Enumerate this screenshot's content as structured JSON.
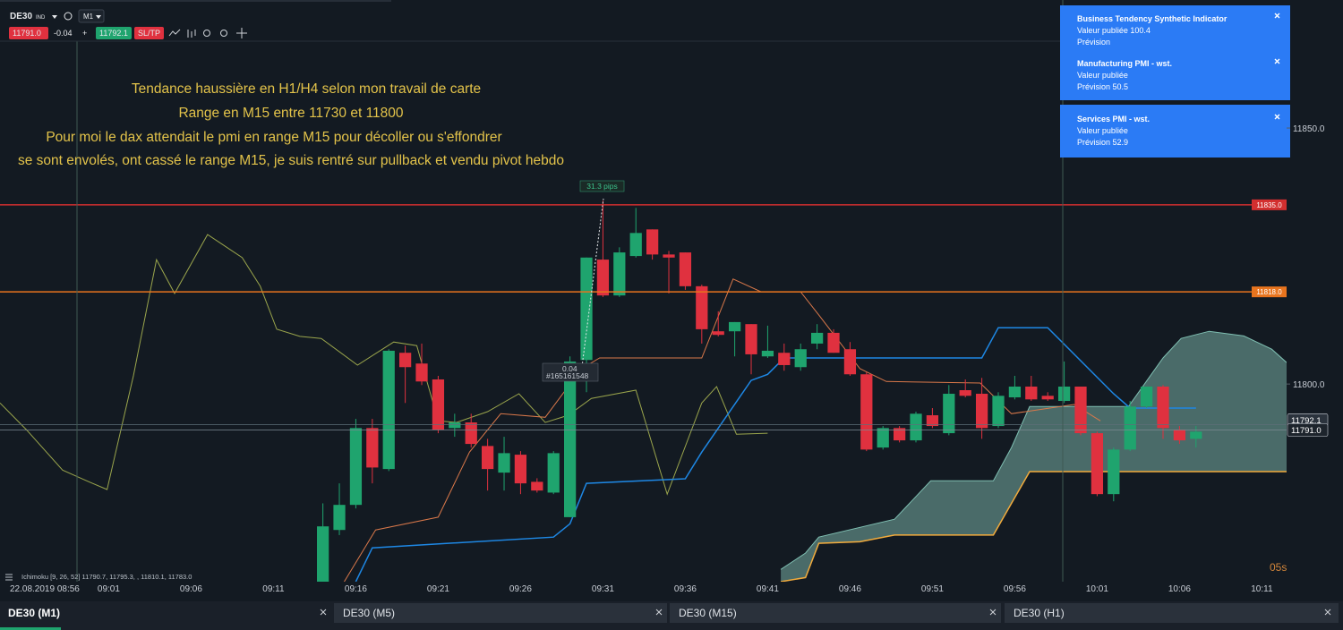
{
  "toolbar": {
    "symbol": "DE30",
    "badge": "IND",
    "timeframe": "M1",
    "bid": "11791.0",
    "spread": "-0.04",
    "plus": "+",
    "ask": "11792.1",
    "sltp": "SL/TP"
  },
  "notifications": [
    {
      "title": "Business Tendency Synthetic Indicator",
      "published": "Valeur publiée",
      "published_value": "100.4",
      "forecast": "Prévision"
    },
    {
      "title": "Manufacturing PMI - wst.",
      "published": "Valeur publiée",
      "forecast": "Prévision",
      "forecast_value": "50.5"
    },
    {
      "title": "Services PMI - wst.",
      "published": "Valeur publiée",
      "forecast": "Prévision",
      "forecast_value": "52.9"
    }
  ],
  "chart_data": {
    "type": "candlestick",
    "annotations": [
      "Tendance haussière en H1/H4 selon mon travail de carte",
      "Range en M15 entre 11730 et 11800",
      "Pour moi le dax attendait le pmi en range M15 pour décoller ou s'effondrer",
      "se sont envolés, ont cassé le range M15, je suis rentré sur pullback et vendu pivot hebdo"
    ],
    "x_start_label": "22.08.2019 08:56",
    "timer": "05s",
    "legend": "Ichimoku [9, 26, 52] 11790.7, 11795.3, , 11810.1, 11783.0",
    "measure": {
      "label": "31.3 pips",
      "change": "0.04",
      "order": "#165161548"
    },
    "up_color": "#1fa46e",
    "down_color": "#e0313f",
    "x": [
      14,
      15,
      16,
      17,
      18,
      19,
      20,
      21,
      22,
      23,
      24,
      25,
      26,
      27,
      28,
      29,
      30,
      31,
      32,
      33,
      34,
      35,
      36,
      37,
      38,
      39,
      40,
      41,
      42,
      43,
      44,
      45,
      46,
      47,
      48,
      49,
      50,
      51,
      52,
      53,
      54,
      55,
      56,
      57,
      58,
      59,
      60,
      61,
      62,
      63,
      64,
      65,
      66,
      67
    ],
    "open": [
      11761.4,
      11771.5,
      11776.4,
      11791.4,
      11783.4,
      11806.1,
      11804.0,
      11800.9,
      11791.4,
      11792.5,
      11787.9,
      11782.7,
      11786.2,
      11780.9,
      11778.8,
      11774.0,
      11804.7,
      11824.3,
      11817.3,
      11825.0,
      11830.2,
      11825.3,
      11825.7,
      11819.1,
      11810.3,
      11810.3,
      11811.7,
      11805.4,
      11806.1,
      11803.3,
      11807.9,
      11810.0,
      11806.8,
      11801.9,
      11787.6,
      11791.4,
      11789.0,
      11793.9,
      11790.4,
      11798.8,
      11798.1,
      11791.8,
      11797.4,
      11799.5,
      11797.7,
      11796.7,
      11799.5,
      11790.4,
      11778.5,
      11787.2,
      11795.6,
      11799.5,
      11791.1,
      11789.3
    ],
    "high": [
      11776.7,
      11780.6,
      11793.2,
      11793.2,
      11806.8,
      11807.5,
      11807.9,
      11801.6,
      11794.2,
      11794.2,
      11789.3,
      11789.7,
      11786.9,
      11781.6,
      11786.9,
      11805.4,
      11824.7,
      11835.8,
      11826.7,
      11834.4,
      11830.2,
      11826.0,
      11825.7,
      11819.4,
      11814.2,
      11812.1,
      11811.7,
      11811.4,
      11807.9,
      11807.9,
      11811.7,
      11810.7,
      11808.2,
      11802.3,
      11791.8,
      11791.8,
      11794.6,
      11795.3,
      11799.8,
      11800.9,
      11801.2,
      11798.4,
      11801.6,
      11801.6,
      11798.4,
      11804.4,
      11799.5,
      11790.7,
      11787.6,
      11796.7,
      11799.5,
      11799.8,
      11791.8,
      11791.8
    ],
    "low": [
      11761.4,
      11770.5,
      11775.7,
      11780.6,
      11783.0,
      11796.3,
      11799.8,
      11790.4,
      11789.7,
      11787.6,
      11779.2,
      11779.2,
      11778.5,
      11778.8,
      11778.5,
      11774.0,
      11798.4,
      11817.0,
      11817.0,
      11824.7,
      11824.3,
      11817.7,
      11818.4,
      11807.9,
      11809.3,
      11805.4,
      11801.9,
      11805.1,
      11802.6,
      11802.6,
      11806.8,
      11806.1,
      11801.6,
      11786.9,
      11787.2,
      11788.6,
      11788.6,
      11791.4,
      11790.0,
      11797.4,
      11789.3,
      11791.4,
      11797.0,
      11796.7,
      11796.7,
      11796.3,
      11790.0,
      11778.1,
      11777.1,
      11786.9,
      11795.3,
      11789.3,
      11788.3,
      11787.6
    ],
    "close": [
      11772.2,
      11776.4,
      11791.4,
      11783.7,
      11806.5,
      11803.3,
      11800.5,
      11791.1,
      11792.5,
      11788.3,
      11783.4,
      11786.5,
      11780.6,
      11779.2,
      11786.5,
      11804.4,
      11824.7,
      11817.3,
      11825.7,
      11829.5,
      11825.3,
      11824.7,
      11819.1,
      11810.7,
      11809.6,
      11812.1,
      11805.8,
      11806.5,
      11803.7,
      11806.8,
      11810.0,
      11806.1,
      11801.9,
      11787.2,
      11791.4,
      11789.0,
      11794.2,
      11791.8,
      11798.1,
      11797.7,
      11791.4,
      11797.7,
      11799.5,
      11797.0,
      11797.0,
      11799.5,
      11790.4,
      11778.5,
      11787.2,
      11795.6,
      11799.5,
      11791.4,
      11789.0,
      11790.7
    ],
    "indicators": {
      "chikou": {
        "color": "#9aa54c",
        "x": [
          -5.6,
          -4.0,
          -1.8,
          -0.2,
          0.9,
          2.5,
          3.9,
          5.0,
          7.0,
          9.1,
          10.2,
          11.2,
          12.6,
          13.9,
          16.1,
          18.3,
          19.7,
          21.0,
          22.1,
          24.0,
          25.9,
          27.5,
          28.9,
          30.3,
          33.0,
          34.9,
          37.0,
          37.9,
          39.1,
          41.0
        ],
        "values": [
          11796.3,
          11791.1,
          11783.2,
          11780.9,
          11779.4,
          11801.6,
          11824.3,
          11817.7,
          11829.2,
          11824.7,
          11819.1,
          11810.7,
          11809.3,
          11808.9,
          11803.7,
          11808.2,
          11807.5,
          11792.8,
          11792.5,
          11794.6,
          11798.1,
          11792.5,
          11793.9,
          11797.2,
          11798.8,
          11778.5,
          11796.3,
          11799.5,
          11790.2,
          11790.4
        ]
      },
      "tenkan": {
        "color": "#d9784a",
        "x": [
          15.3,
          17.2,
          21.0,
          22.9,
          24.8,
          27.5,
          29.7,
          30.8,
          37.0,
          38.9,
          40.6,
          43.0,
          44.1,
          46.6,
          48.2,
          53.9,
          55.8,
          59.6,
          61.2
        ],
        "values": [
          11761.4,
          11771.5,
          11774.0,
          11786.7,
          11794.2,
          11793.5,
          11803.0,
          11805.1,
          11805.1,
          11820.5,
          11818.0,
          11818.0,
          11813.5,
          11803.0,
          11800.5,
          11800.2,
          11794.2,
          11796.0,
          11792.8
        ]
      },
      "kijun": {
        "color": "#1e88e5",
        "x": [
          16,
          17,
          28,
          29,
          30,
          36,
          37,
          40,
          41,
          42,
          54,
          55,
          58,
          62,
          63,
          67
        ],
        "values": [
          11761.4,
          11768.0,
          11770.1,
          11772.7,
          11780.6,
          11781.5,
          11786.7,
          11800.7,
          11801.9,
          11805.1,
          11805.1,
          11811.0,
          11811.0,
          11798.1,
          11795.3,
          11795.3
        ]
      },
      "span_a": {
        "color": "#7fbfb2",
        "x": [
          41.8,
          43.3,
          44.1,
          48.7,
          50.9,
          54.7,
          55.8,
          56.9,
          62.9,
          65.0,
          66.1,
          67.8,
          69.9,
          71.6,
          72.5
        ],
        "values": [
          11763.8,
          11767.0,
          11770.1,
          11773.6,
          11781.1,
          11781.1,
          11787.6,
          11795.6,
          11795.6,
          11805.1,
          11808.9,
          11810.3,
          11809.4,
          11806.8,
          11804.2
        ]
      },
      "span_b": {
        "color": "#f2ab3c",
        "x": [
          41.8,
          43.3,
          44.1,
          46.6,
          48.7,
          54.7,
          55.8,
          56.9,
          72.5
        ],
        "values": [
          11761.4,
          11762.2,
          11768.9,
          11769.2,
          11770.5,
          11770.5,
          11776.7,
          11782.9,
          11782.9
        ]
      }
    },
    "cloud_color": "#8fcfc2",
    "hlines": [
      {
        "value": 11835,
        "label": "11835.0",
        "color": "#d32f2f"
      },
      {
        "value": 11818,
        "label": "11818.0",
        "color": "#e8741e"
      }
    ],
    "ask_line": {
      "value": 11792.1,
      "label": "11792.1"
    },
    "bid_line": {
      "value": 11791,
      "label": "11791.0"
    },
    "xlim": [
      -5.6,
      72.5
    ],
    "ylim": [
      11761.4,
      11875
    ],
    "xticks": [
      {
        "value": 1,
        "label": "09:01"
      },
      {
        "value": 6,
        "label": "09:06"
      },
      {
        "value": 11,
        "label": "09:11"
      },
      {
        "value": 16,
        "label": "09:16"
      },
      {
        "value": 21,
        "label": "09:21"
      },
      {
        "value": 26,
        "label": "09:26"
      },
      {
        "value": 31,
        "label": "09:31"
      },
      {
        "value": 36,
        "label": "09:36"
      },
      {
        "value": 41,
        "label": "09:41"
      },
      {
        "value": 46,
        "label": "09:46"
      },
      {
        "value": 51,
        "label": "09:51"
      },
      {
        "value": 56,
        "label": "09:56"
      },
      {
        "value": 61,
        "label": "10:01"
      },
      {
        "value": 66,
        "label": "10:06"
      },
      {
        "value": 71,
        "label": "10:11"
      }
    ],
    "yticks": [
      {
        "value": 11800,
        "label": "11800.0"
      },
      {
        "value": 11850,
        "label": "11850.0"
      }
    ]
  },
  "tabs": [
    "DE30 (M1)",
    "DE30 (M5)",
    "DE30 (M15)",
    "DE30 (H1)"
  ]
}
